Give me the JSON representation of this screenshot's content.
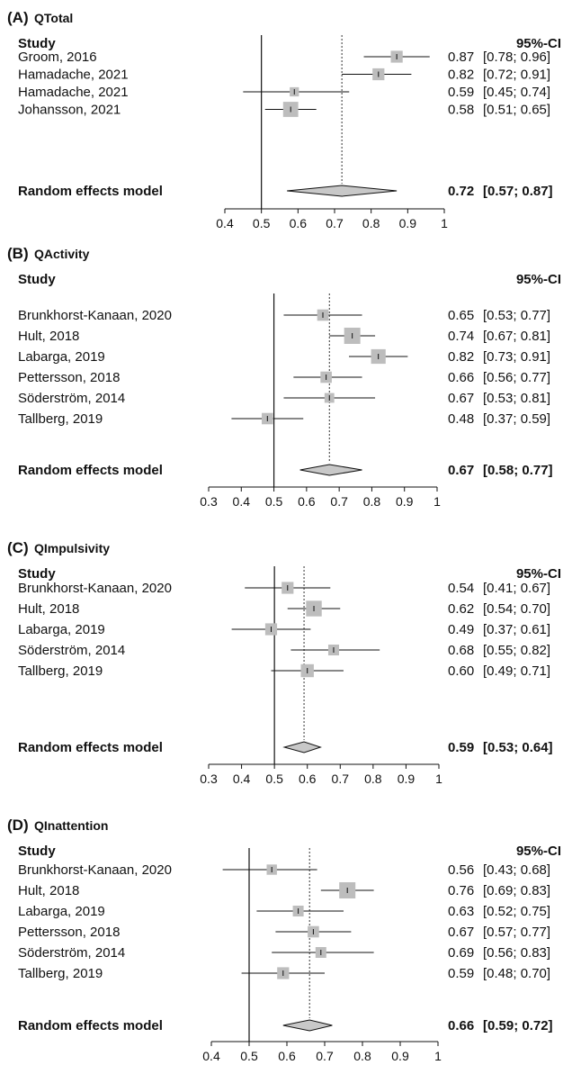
{
  "headers": {
    "study": "Study",
    "ci": "95%-CI"
  },
  "chart_data": [
    {
      "type": "forest",
      "panel_label": "(A)",
      "title": "QTotal",
      "xlim": [
        0.4,
        1
      ],
      "ticks": [
        "0.4",
        "0.5",
        "0.6",
        "0.7",
        "0.8",
        "0.9",
        "1"
      ],
      "reference_line": 0.5,
      "studies": [
        {
          "name": "Groom, 2016",
          "est": 0.87,
          "lo": 0.78,
          "hi": 0.96,
          "est_label": "0.87",
          "ci_label": "[0.78; 0.96]",
          "weight": 0.6
        },
        {
          "name": "Hamadache, 2021",
          "est": 0.82,
          "lo": 0.72,
          "hi": 0.91,
          "est_label": "0.82",
          "ci_label": "[0.72; 0.91]",
          "weight": 0.6
        },
        {
          "name": "Hamadache, 2021",
          "est": 0.59,
          "lo": 0.45,
          "hi": 0.74,
          "est_label": "0.59",
          "ci_label": "[0.45; 0.74]",
          "weight": 0.35
        },
        {
          "name": "Johansson, 2021",
          "est": 0.58,
          "lo": 0.51,
          "hi": 0.65,
          "est_label": "0.58",
          "ci_label": "[0.51; 0.65]",
          "weight": 0.9
        }
      ],
      "pooled": {
        "name": "Random effects model",
        "est": 0.72,
        "lo": 0.57,
        "hi": 0.87,
        "est_label": "0.72",
        "ci_label": "[0.57; 0.87]"
      }
    },
    {
      "type": "forest",
      "panel_label": "(B)",
      "title": "QActivity",
      "xlim": [
        0.3,
        1
      ],
      "ticks": [
        "0.3",
        "0.4",
        "0.5",
        "0.6",
        "0.7",
        "0.8",
        "0.9",
        "1"
      ],
      "reference_line": 0.5,
      "studies": [
        {
          "name": "Brunkhorst-Kanaan, 2020",
          "est": 0.65,
          "lo": 0.53,
          "hi": 0.77,
          "est_label": "0.65",
          "ci_label": "[0.53; 0.77]",
          "weight": 0.55
        },
        {
          "name": "Hult, 2018",
          "est": 0.74,
          "lo": 0.67,
          "hi": 0.81,
          "est_label": "0.74",
          "ci_label": "[0.67; 0.81]",
          "weight": 1.0
        },
        {
          "name": "Labarga, 2019",
          "est": 0.82,
          "lo": 0.73,
          "hi": 0.91,
          "est_label": "0.82",
          "ci_label": "[0.73; 0.91]",
          "weight": 0.85
        },
        {
          "name": "Pettersson, 2018",
          "est": 0.66,
          "lo": 0.56,
          "hi": 0.77,
          "est_label": "0.66",
          "ci_label": "[0.56; 0.77]",
          "weight": 0.55
        },
        {
          "name": "Söderström, 2014",
          "est": 0.67,
          "lo": 0.53,
          "hi": 0.81,
          "est_label": "0.67",
          "ci_label": "[0.53; 0.81]",
          "weight": 0.4
        },
        {
          "name": "Tallberg, 2019",
          "est": 0.48,
          "lo": 0.37,
          "hi": 0.59,
          "est_label": "0.48",
          "ci_label": "[0.37; 0.59]",
          "weight": 0.55
        }
      ],
      "pooled": {
        "name": "Random effects model",
        "est": 0.67,
        "lo": 0.58,
        "hi": 0.77,
        "est_label": "0.67",
        "ci_label": "[0.58; 0.77]"
      }
    },
    {
      "type": "forest",
      "panel_label": "(C)",
      "title": "QImpulsivity",
      "xlim": [
        0.3,
        1
      ],
      "ticks": [
        "0.3",
        "0.4",
        "0.5",
        "0.6",
        "0.7",
        "0.8",
        "0.9",
        "1"
      ],
      "reference_line": 0.5,
      "studies": [
        {
          "name": "Brunkhorst-Kanaan, 2020",
          "est": 0.54,
          "lo": 0.41,
          "hi": 0.67,
          "est_label": "0.54",
          "ci_label": "[0.41; 0.67]",
          "weight": 0.6
        },
        {
          "name": "Hult, 2018",
          "est": 0.62,
          "lo": 0.54,
          "hi": 0.7,
          "est_label": "0.62",
          "ci_label": "[0.54; 0.70]",
          "weight": 0.95
        },
        {
          "name": "Labarga, 2019",
          "est": 0.49,
          "lo": 0.37,
          "hi": 0.61,
          "est_label": "0.49",
          "ci_label": "[0.37; 0.61]",
          "weight": 0.6
        },
        {
          "name": "Söderström, 2014",
          "est": 0.68,
          "lo": 0.55,
          "hi": 0.82,
          "est_label": "0.68",
          "ci_label": "[0.55; 0.82]",
          "weight": 0.5
        },
        {
          "name": "Tallberg, 2019",
          "est": 0.6,
          "lo": 0.49,
          "hi": 0.71,
          "est_label": "0.60",
          "ci_label": "[0.49; 0.71]",
          "weight": 0.7
        }
      ],
      "pooled": {
        "name": "Random effects model",
        "est": 0.59,
        "lo": 0.53,
        "hi": 0.64,
        "est_label": "0.59",
        "ci_label": "[0.53; 0.64]"
      }
    },
    {
      "type": "forest",
      "panel_label": "(D)",
      "title": "QInattention",
      "xlim": [
        0.4,
        1
      ],
      "ticks": [
        "0.4",
        "0.5",
        "0.6",
        "0.7",
        "0.8",
        "0.9",
        "1"
      ],
      "reference_line": 0.5,
      "studies": [
        {
          "name": "Brunkhorst-Kanaan, 2020",
          "est": 0.56,
          "lo": 0.43,
          "hi": 0.68,
          "est_label": "0.56",
          "ci_label": "[0.43; 0.68]",
          "weight": 0.45
        },
        {
          "name": "Hult, 2018",
          "est": 0.76,
          "lo": 0.69,
          "hi": 0.83,
          "est_label": "0.76",
          "ci_label": "[0.69; 0.83]",
          "weight": 1.0
        },
        {
          "name": "Labarga, 2019",
          "est": 0.63,
          "lo": 0.52,
          "hi": 0.75,
          "est_label": "0.63",
          "ci_label": "[0.52; 0.75]",
          "weight": 0.5
        },
        {
          "name": "Pettersson, 2018",
          "est": 0.67,
          "lo": 0.57,
          "hi": 0.77,
          "est_label": "0.67",
          "ci_label": "[0.57; 0.77]",
          "weight": 0.55
        },
        {
          "name": "Söderström, 2014",
          "est": 0.69,
          "lo": 0.56,
          "hi": 0.83,
          "est_label": "0.69",
          "ci_label": "[0.56; 0.83]",
          "weight": 0.5
        },
        {
          "name": "Tallberg, 2019",
          "est": 0.59,
          "lo": 0.48,
          "hi": 0.7,
          "est_label": "0.59",
          "ci_label": "[0.48; 0.70]",
          "weight": 0.6
        }
      ],
      "pooled": {
        "name": "Random effects model",
        "est": 0.66,
        "lo": 0.59,
        "hi": 0.72,
        "est_label": "0.66",
        "ci_label": "[0.59; 0.72]"
      }
    }
  ]
}
